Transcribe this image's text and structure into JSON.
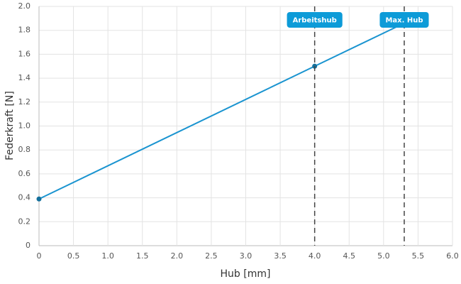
{
  "chart_data": {
    "type": "line",
    "x_label": "Hub [mm]",
    "y_label": "Federkraft [N]",
    "x": [
      0,
      4,
      5.3
    ],
    "series": [
      {
        "color": "#1a94d0",
        "values": [
          0.39,
          1.5,
          1.86
        ]
      }
    ],
    "xlim": [
      0,
      6
    ],
    "ylim": [
      0,
      2
    ],
    "xticks": [
      0,
      0.5,
      {
        "value": 1,
        "label": "1.0"
      },
      1.5,
      {
        "value": 2,
        "label": "2.0"
      },
      2.5,
      {
        "value": 3,
        "label": "3.0"
      },
      3.5,
      {
        "value": 4,
        "label": "4.0"
      },
      4.5,
      {
        "value": 5,
        "label": "5.0"
      },
      5.5,
      {
        "value": 6,
        "label": "6.0"
      }
    ],
    "yticks": [
      0,
      0.2,
      0.4,
      0.6,
      0.8,
      {
        "value": 1,
        "label": "1.0"
      },
      1.2,
      1.4,
      1.6,
      1.8,
      {
        "value": 2,
        "label": "2.0"
      }
    ],
    "grid": true,
    "annotations": [
      {
        "x": 4,
        "label": "Arbeitshub"
      },
      {
        "x": 5.3,
        "label": "Max. Hub"
      }
    ]
  }
}
